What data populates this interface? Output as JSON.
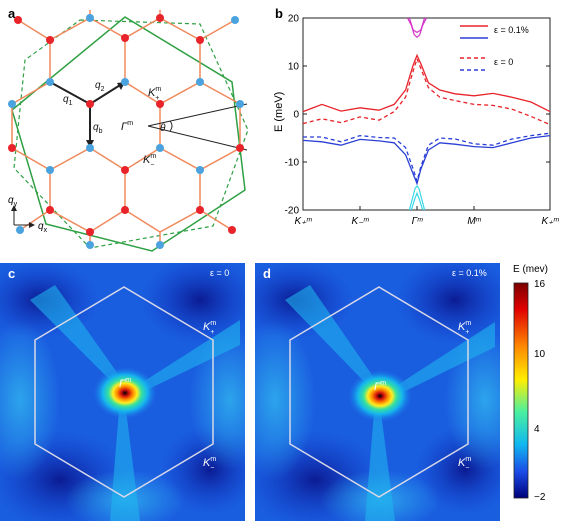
{
  "panels": {
    "a": {
      "letter": "a",
      "labels": {
        "q1": "q",
        "q1_sub": "1",
        "q2": "q",
        "q2_sub": "2",
        "qb": "q",
        "qb_sub": "b",
        "kplus": "K",
        "kplus_sub": "+",
        "kplus_sup": "m",
        "kminus": "K",
        "kminus_sub": "−",
        "kminus_sup": "m",
        "gamma": "Γ",
        "gamma_sup": "m",
        "theta": "θ",
        "qy": "q",
        "qy_sub": "y",
        "qx": "q",
        "qx_sub": "x"
      },
      "colors": {
        "red_site": "#e8232a",
        "blue_site": "#4aa3df",
        "bond": "#f08a5d",
        "bz": "#2ea043",
        "black": "#222222"
      }
    },
    "b": {
      "letter": "b",
      "chart_data": {
        "type": "line",
        "ylabel": "E (meV)",
        "ylim": [
          -20,
          20
        ],
        "yticks": [
          -20,
          -10,
          0,
          10,
          20
        ],
        "xticks": [
          "K₊ᵐ",
          "K₋ᵐ",
          "Γᵐ",
          "Mᵐ",
          "K₊ᵐ"
        ],
        "legend": [
          {
            "label": "ε = 0.1%",
            "color": "#e8232a",
            "dash": false
          },
          {
            "label": "",
            "color": "#2a3fd6",
            "dash": false
          },
          {
            "label": "ε = 0",
            "color": "#e8232a",
            "dash": true
          },
          {
            "label": "",
            "color": "#2a3fd6",
            "dash": true
          }
        ],
        "x": [
          0,
          0.5,
          1,
          1.5,
          2,
          2.4,
          2.7,
          2.9,
          3,
          3.1,
          3.3,
          3.6,
          4,
          4.5,
          5,
          5.5,
          6,
          6.5
        ],
        "series": [
          {
            "color": "#e8232a",
            "dash": false,
            "values": [
              0.5,
              2.0,
              0.6,
              1.3,
              0.8,
              2.0,
              5.0,
              10.2,
              12.2,
              10.5,
              6.5,
              5.0,
              4.2,
              3.8,
              4.3,
              3.5,
              2.5,
              0.5
            ]
          },
          {
            "color": "#2a3fd6",
            "dash": false,
            "values": [
              -5.5,
              -5.8,
              -6.5,
              -5.3,
              -5.6,
              -6.0,
              -8.5,
              -12.5,
              -14.5,
              -11.5,
              -7.5,
              -6.0,
              -6.3,
              -6.8,
              -7.0,
              -6.0,
              -5.0,
              -4.5
            ]
          },
          {
            "color": "#e8232a",
            "dash": true,
            "values": [
              -2.0,
              -1.0,
              -1.8,
              -0.6,
              -1.3,
              0.5,
              3.5,
              9.0,
              11.5,
              9.5,
              5.5,
              3.5,
              2.8,
              2.0,
              1.8,
              1.0,
              -0.5,
              -2.2
            ]
          },
          {
            "color": "#2a3fd6",
            "dash": true,
            "values": [
              -4.8,
              -4.8,
              -5.8,
              -4.5,
              -4.9,
              -5.0,
              -7.0,
              -11.5,
              -14.0,
              -11.0,
              -6.5,
              -5.0,
              -5.2,
              -6.2,
              -6.5,
              -5.2,
              -4.5,
              -4.0
            ]
          }
        ],
        "tips": [
          {
            "color": "#d633c8",
            "x": [
              2.75,
              2.85,
              2.93,
              3.0,
              3.07,
              3.15,
              3.25
            ],
            "values": [
              20,
              18.5,
              16.5,
              16.0,
              16.5,
              18.5,
              20
            ]
          },
          {
            "color": "#d633c8",
            "x": [
              2.8,
              2.9,
              3.0,
              3.1,
              3.2
            ],
            "values": [
              20,
              17.5,
              17.0,
              17.5,
              20
            ]
          },
          {
            "color": "#39d6e6",
            "x": [
              2.8,
              2.9,
              2.95,
              3.0,
              3.05,
              3.1,
              3.2
            ],
            "values": [
              -20,
              -17.0,
              -15.5,
              -15.0,
              -15.5,
              -17.0,
              -20
            ]
          },
          {
            "color": "#39d6e6",
            "x": [
              2.85,
              2.95,
              3.0,
              3.05,
              3.15
            ],
            "values": [
              -20,
              -17.5,
              -16.5,
              -17.5,
              -20
            ]
          }
        ]
      }
    },
    "c": {
      "letter": "c",
      "strain": "ε = 0",
      "gamma": "Γ",
      "gamma_sup": "m",
      "kplus": "K",
      "kplus_sub": "+",
      "kplus_sup": "m",
      "kminus": "K",
      "kminus_sub": "−",
      "kminus_sup": "m"
    },
    "d": {
      "letter": "d",
      "strain": "ε = 0.1%",
      "gamma": "Γ",
      "gamma_sup": "m",
      "kplus": "K",
      "kplus_sub": "+",
      "kplus_sup": "m",
      "kminus": "K",
      "kminus_sub": "−",
      "kminus_sup": "m"
    },
    "colorbar": {
      "title": "E (mev)",
      "ticks": [
        "16",
        "10",
        "4",
        "−2"
      ]
    }
  }
}
